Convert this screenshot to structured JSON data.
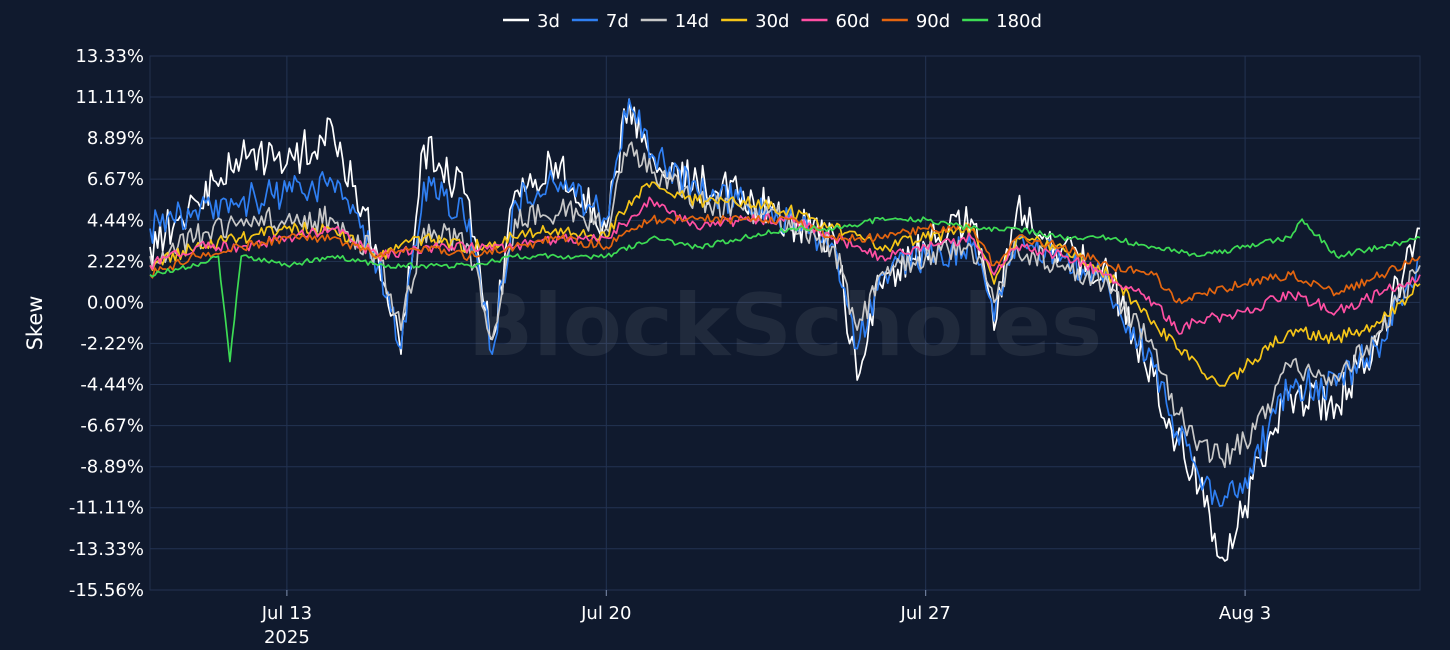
{
  "chart_data": {
    "type": "line",
    "title": "",
    "ylabel": "Skew",
    "xlabel": "",
    "watermark": "BlockScholes",
    "ylim": [
      -15.56,
      13.33
    ],
    "y_ticks": [
      "13.33%",
      "11.11%",
      "8.89%",
      "6.67%",
      "4.44%",
      "2.22%",
      "0.00%",
      "-2.22%",
      "-4.44%",
      "-6.67%",
      "-8.89%",
      "-11.11%",
      "-13.33%",
      "-15.56%"
    ],
    "y_tick_values": [
      13.33,
      11.11,
      8.89,
      6.67,
      4.44,
      2.22,
      0.0,
      -2.22,
      -4.44,
      -6.67,
      -8.89,
      -11.11,
      -13.33,
      -15.56
    ],
    "x_range": [
      "2025-07-10T00:00",
      "2025-08-06T20:00"
    ],
    "x_ticks": [
      {
        "date": "2025-07-13",
        "label": "Jul 13",
        "sublabel": "2025"
      },
      {
        "date": "2025-07-20",
        "label": "Jul 20",
        "sublabel": ""
      },
      {
        "date": "2025-07-27",
        "label": "Jul 27",
        "sublabel": ""
      },
      {
        "date": "2025-08-03",
        "label": "Aug 3",
        "sublabel": ""
      }
    ],
    "grid": true,
    "legend": "top",
    "series": [
      {
        "name": "3d",
        "color": "#ffffff",
        "points": [
          [
            "2025-07-10",
            3.0
          ],
          [
            "2025-07-11",
            5.5
          ],
          [
            "2025-07-12",
            7.8
          ],
          [
            "2025-07-13",
            7.5
          ],
          [
            "2025-07-14",
            9.5
          ],
          [
            "2025-07-15",
            2.5
          ],
          [
            "2025-07-15T12:00",
            -2.8
          ],
          [
            "2025-07-16",
            8.5
          ],
          [
            "2025-07-17",
            5.5
          ],
          [
            "2025-07-17T12:00",
            -2.0
          ],
          [
            "2025-07-18",
            6.0
          ],
          [
            "2025-07-19",
            7.5
          ],
          [
            "2025-07-20",
            4.0
          ],
          [
            "2025-07-20T12:00",
            11.0
          ],
          [
            "2025-07-21",
            8.0
          ],
          [
            "2025-07-22",
            6.5
          ],
          [
            "2025-07-23",
            6.0
          ],
          [
            "2025-07-24",
            4.5
          ],
          [
            "2025-07-25",
            3.5
          ],
          [
            "2025-07-25T12:00",
            -4.2
          ],
          [
            "2025-07-26",
            1.0
          ],
          [
            "2025-07-27",
            3.0
          ],
          [
            "2025-07-28",
            4.5
          ],
          [
            "2025-07-28T12:00",
            -1.5
          ],
          [
            "2025-07-29",
            5.0
          ],
          [
            "2025-07-30",
            3.0
          ],
          [
            "2025-07-31",
            1.5
          ],
          [
            "2025-08-01",
            -4.0
          ],
          [
            "2025-08-01T12:00",
            -7.5
          ],
          [
            "2025-08-02",
            -10.0
          ],
          [
            "2025-08-02T12:00",
            -13.8
          ],
          [
            "2025-08-03",
            -11.0
          ],
          [
            "2025-08-03T12:00",
            -7.5
          ],
          [
            "2025-08-04",
            -5.0
          ],
          [
            "2025-08-05",
            -5.5
          ],
          [
            "2025-08-06",
            -1.5
          ],
          [
            "2025-08-06T20:00",
            4.0
          ]
        ]
      },
      {
        "name": "7d",
        "color": "#2f7ff2",
        "points": [
          [
            "2025-07-10",
            4.0
          ],
          [
            "2025-07-11",
            5.0
          ],
          [
            "2025-07-12",
            5.5
          ],
          [
            "2025-07-13",
            6.0
          ],
          [
            "2025-07-14",
            6.5
          ],
          [
            "2025-07-15",
            2.0
          ],
          [
            "2025-07-15T12:00",
            -2.5
          ],
          [
            "2025-07-16",
            6.5
          ],
          [
            "2025-07-17",
            4.5
          ],
          [
            "2025-07-17T12:00",
            -2.8
          ],
          [
            "2025-07-18",
            5.5
          ],
          [
            "2025-07-19",
            6.5
          ],
          [
            "2025-07-20",
            4.5
          ],
          [
            "2025-07-20T12:00",
            11.0
          ],
          [
            "2025-07-21",
            8.0
          ],
          [
            "2025-07-22",
            6.0
          ],
          [
            "2025-07-23",
            5.5
          ],
          [
            "2025-07-24",
            4.5
          ],
          [
            "2025-07-25",
            3.0
          ],
          [
            "2025-07-25T12:00",
            -2.5
          ],
          [
            "2025-07-26",
            1.5
          ],
          [
            "2025-07-27",
            2.5
          ],
          [
            "2025-07-28",
            3.0
          ],
          [
            "2025-07-28T12:00",
            -1.0
          ],
          [
            "2025-07-29",
            3.5
          ],
          [
            "2025-07-30",
            2.5
          ],
          [
            "2025-07-31",
            1.0
          ],
          [
            "2025-08-01",
            -3.5
          ],
          [
            "2025-08-01T12:00",
            -7.0
          ],
          [
            "2025-08-02",
            -9.5
          ],
          [
            "2025-08-02T12:00",
            -11.0
          ],
          [
            "2025-08-03",
            -9.5
          ],
          [
            "2025-08-03T12:00",
            -7.0
          ],
          [
            "2025-08-04",
            -4.5
          ],
          [
            "2025-08-05",
            -4.5
          ],
          [
            "2025-08-06",
            -2.0
          ],
          [
            "2025-08-06T20:00",
            2.5
          ]
        ]
      },
      {
        "name": "14d",
        "color": "#c8c8c8",
        "points": [
          [
            "2025-07-10",
            2.5
          ],
          [
            "2025-07-11",
            3.5
          ],
          [
            "2025-07-12",
            4.5
          ],
          [
            "2025-07-13",
            4.5
          ],
          [
            "2025-07-14",
            4.5
          ],
          [
            "2025-07-15",
            2.5
          ],
          [
            "2025-07-15T12:00",
            -1.5
          ],
          [
            "2025-07-16",
            4.0
          ],
          [
            "2025-07-17",
            3.0
          ],
          [
            "2025-07-17T12:00",
            -2.0
          ],
          [
            "2025-07-18",
            4.5
          ],
          [
            "2025-07-19",
            5.0
          ],
          [
            "2025-07-20",
            4.0
          ],
          [
            "2025-07-20T12:00",
            8.5
          ],
          [
            "2025-07-21",
            7.0
          ],
          [
            "2025-07-22",
            5.5
          ],
          [
            "2025-07-23",
            5.0
          ],
          [
            "2025-07-24",
            4.5
          ],
          [
            "2025-07-25",
            3.0
          ],
          [
            "2025-07-25T12:00",
            -1.5
          ],
          [
            "2025-07-26",
            1.5
          ],
          [
            "2025-07-27",
            2.5
          ],
          [
            "2025-07-28",
            3.0
          ],
          [
            "2025-07-28T12:00",
            0.0
          ],
          [
            "2025-07-29",
            3.0
          ],
          [
            "2025-07-30",
            2.0
          ],
          [
            "2025-07-31",
            1.0
          ],
          [
            "2025-08-01",
            -2.5
          ],
          [
            "2025-08-01T12:00",
            -6.0
          ],
          [
            "2025-08-02",
            -7.5
          ],
          [
            "2025-08-02T12:00",
            -8.5
          ],
          [
            "2025-08-03",
            -7.5
          ],
          [
            "2025-08-03T12:00",
            -5.5
          ],
          [
            "2025-08-04",
            -3.5
          ],
          [
            "2025-08-05",
            -4.0
          ],
          [
            "2025-08-06",
            -1.5
          ],
          [
            "2025-08-06T20:00",
            2.0
          ]
        ]
      },
      {
        "name": "30d",
        "color": "#f5c518",
        "points": [
          [
            "2025-07-10",
            2.0
          ],
          [
            "2025-07-11",
            3.0
          ],
          [
            "2025-07-12",
            3.5
          ],
          [
            "2025-07-13",
            4.0
          ],
          [
            "2025-07-14",
            4.0
          ],
          [
            "2025-07-15",
            2.5
          ],
          [
            "2025-07-16",
            3.5
          ],
          [
            "2025-07-17",
            3.0
          ],
          [
            "2025-07-18",
            3.5
          ],
          [
            "2025-07-19",
            4.0
          ],
          [
            "2025-07-20",
            3.5
          ],
          [
            "2025-07-20T12:00",
            5.5
          ],
          [
            "2025-07-21",
            6.5
          ],
          [
            "2025-07-22",
            5.5
          ],
          [
            "2025-07-23",
            5.5
          ],
          [
            "2025-07-24",
            5.0
          ],
          [
            "2025-07-25",
            4.0
          ],
          [
            "2025-07-26",
            3.0
          ],
          [
            "2025-07-27",
            3.5
          ],
          [
            "2025-07-28",
            4.0
          ],
          [
            "2025-07-28T12:00",
            1.0
          ],
          [
            "2025-07-29",
            3.5
          ],
          [
            "2025-07-30",
            3.0
          ],
          [
            "2025-07-31",
            1.5
          ],
          [
            "2025-08-01",
            -1.0
          ],
          [
            "2025-08-01T12:00",
            -2.5
          ],
          [
            "2025-08-02",
            -3.5
          ],
          [
            "2025-08-02T12:00",
            -4.5
          ],
          [
            "2025-08-03",
            -3.5
          ],
          [
            "2025-08-04",
            -1.5
          ],
          [
            "2025-08-05",
            -2.0
          ],
          [
            "2025-08-06",
            -1.0
          ],
          [
            "2025-08-06T20:00",
            1.0
          ]
        ]
      },
      {
        "name": "60d",
        "color": "#ff4fa3",
        "points": [
          [
            "2025-07-10",
            2.0
          ],
          [
            "2025-07-11",
            3.0
          ],
          [
            "2025-07-12",
            3.0
          ],
          [
            "2025-07-13",
            3.5
          ],
          [
            "2025-07-14",
            4.0
          ],
          [
            "2025-07-15",
            2.5
          ],
          [
            "2025-07-16",
            3.0
          ],
          [
            "2025-07-17",
            3.0
          ],
          [
            "2025-07-18",
            3.0
          ],
          [
            "2025-07-19",
            3.5
          ],
          [
            "2025-07-20",
            3.5
          ],
          [
            "2025-07-21",
            5.5
          ],
          [
            "2025-07-22",
            4.0
          ],
          [
            "2025-07-23",
            4.5
          ],
          [
            "2025-07-24",
            4.5
          ],
          [
            "2025-07-25",
            3.5
          ],
          [
            "2025-07-26",
            2.5
          ],
          [
            "2025-07-27",
            3.0
          ],
          [
            "2025-07-28",
            3.5
          ],
          [
            "2025-07-28T12:00",
            1.5
          ],
          [
            "2025-07-29",
            3.0
          ],
          [
            "2025-07-30",
            2.5
          ],
          [
            "2025-07-31",
            1.5
          ],
          [
            "2025-08-01",
            0.0
          ],
          [
            "2025-08-01T12:00",
            -1.5
          ],
          [
            "2025-08-02",
            -1.0
          ],
          [
            "2025-08-03",
            -0.5
          ],
          [
            "2025-08-04",
            0.5
          ],
          [
            "2025-08-05",
            -0.5
          ],
          [
            "2025-08-06",
            0.5
          ],
          [
            "2025-08-06T20:00",
            1.5
          ]
        ]
      },
      {
        "name": "90d",
        "color": "#e4650f",
        "points": [
          [
            "2025-07-10",
            1.5
          ],
          [
            "2025-07-11",
            2.5
          ],
          [
            "2025-07-12",
            3.0
          ],
          [
            "2025-07-13",
            3.5
          ],
          [
            "2025-07-14",
            3.5
          ],
          [
            "2025-07-15",
            2.5
          ],
          [
            "2025-07-16",
            3.0
          ],
          [
            "2025-07-17",
            2.5
          ],
          [
            "2025-07-18",
            3.0
          ],
          [
            "2025-07-19",
            3.5
          ],
          [
            "2025-07-20",
            3.0
          ],
          [
            "2025-07-21",
            4.5
          ],
          [
            "2025-07-22",
            4.5
          ],
          [
            "2025-07-23",
            4.5
          ],
          [
            "2025-07-24",
            4.5
          ],
          [
            "2025-07-25",
            3.5
          ],
          [
            "2025-07-26",
            3.5
          ],
          [
            "2025-07-27",
            4.0
          ],
          [
            "2025-07-28",
            4.0
          ],
          [
            "2025-07-28T12:00",
            2.0
          ],
          [
            "2025-07-29",
            3.5
          ],
          [
            "2025-07-30",
            3.0
          ],
          [
            "2025-07-31",
            2.0
          ],
          [
            "2025-08-01",
            1.5
          ],
          [
            "2025-08-01T12:00",
            0.0
          ],
          [
            "2025-08-02",
            0.5
          ],
          [
            "2025-08-03",
            1.0
          ],
          [
            "2025-08-04",
            1.5
          ],
          [
            "2025-08-05",
            0.5
          ],
          [
            "2025-08-06",
            1.5
          ],
          [
            "2025-08-06T20:00",
            2.5
          ]
        ]
      },
      {
        "name": "180d",
        "color": "#3ddc54",
        "points": [
          [
            "2025-07-10",
            1.5
          ],
          [
            "2025-07-11",
            2.0
          ],
          [
            "2025-07-11T12:00",
            2.5
          ],
          [
            "2025-07-11T18:00",
            -3.2
          ],
          [
            "2025-07-12",
            2.5
          ],
          [
            "2025-07-13",
            2.0
          ],
          [
            "2025-07-14",
            2.5
          ],
          [
            "2025-07-15",
            2.0
          ],
          [
            "2025-07-16",
            2.0
          ],
          [
            "2025-07-17",
            2.0
          ],
          [
            "2025-07-18",
            2.5
          ],
          [
            "2025-07-19",
            2.5
          ],
          [
            "2025-07-20",
            2.5
          ],
          [
            "2025-07-21",
            3.5
          ],
          [
            "2025-07-22",
            3.0
          ],
          [
            "2025-07-23",
            3.5
          ],
          [
            "2025-07-24",
            4.0
          ],
          [
            "2025-07-25",
            4.0
          ],
          [
            "2025-07-26",
            4.5
          ],
          [
            "2025-07-27",
            4.5
          ],
          [
            "2025-07-28",
            4.0
          ],
          [
            "2025-07-29",
            4.0
          ],
          [
            "2025-07-30",
            3.5
          ],
          [
            "2025-07-31",
            3.5
          ],
          [
            "2025-08-01",
            3.0
          ],
          [
            "2025-08-02",
            2.5
          ],
          [
            "2025-08-03",
            3.0
          ],
          [
            "2025-08-04",
            3.5
          ],
          [
            "2025-08-04T06:00",
            4.5
          ],
          [
            "2025-08-05",
            2.5
          ],
          [
            "2025-08-06",
            3.0
          ],
          [
            "2025-08-06T20:00",
            3.5
          ]
        ]
      }
    ]
  }
}
